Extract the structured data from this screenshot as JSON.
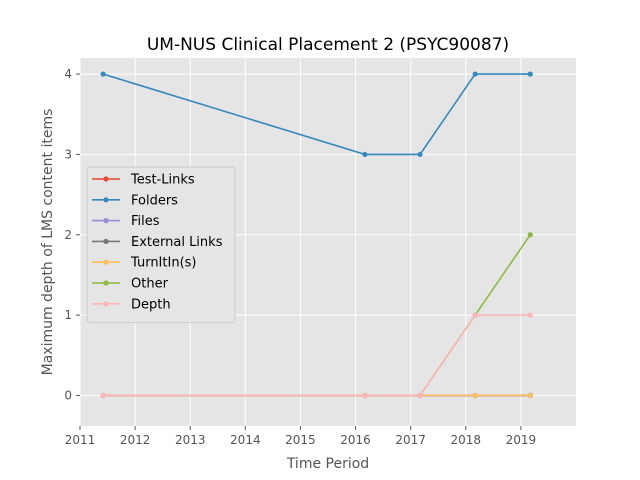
{
  "chart_data": {
    "type": "line",
    "title": "UM-NUS Clinical Placement 2 (PSYC90087)",
    "xlabel": "Time Period",
    "ylabel": "Maximum depth of LMS content items",
    "xlim": [
      2011,
      2020
    ],
    "ylim": [
      -0.38,
      4.2
    ],
    "x_ticks": [
      2011,
      2012,
      2013,
      2014,
      2015,
      2016,
      2017,
      2018,
      2019
    ],
    "y_ticks": [
      0,
      1,
      2,
      3,
      4
    ],
    "grid": true,
    "legend_position": "center-left",
    "x": [
      2011.42,
      2016.17,
      2017.17,
      2018.17,
      2019.17
    ],
    "series": [
      {
        "name": "Test-Links",
        "color": "#E24A33",
        "values": [
          0,
          0,
          0,
          0,
          0
        ]
      },
      {
        "name": "Folders",
        "color": "#348ABD",
        "values": [
          4,
          3,
          3,
          4,
          4
        ]
      },
      {
        "name": "Files",
        "color": "#988ED5",
        "values": [
          0,
          0,
          0,
          0,
          0
        ]
      },
      {
        "name": "External Links",
        "color": "#777777",
        "values": [
          0,
          0,
          0,
          0,
          0
        ]
      },
      {
        "name": "TurnItIn(s)",
        "color": "#FBC15E",
        "values": [
          0,
          0,
          0,
          0,
          0
        ]
      },
      {
        "name": "Other",
        "color": "#8EBA42",
        "values": [
          0,
          0,
          0,
          1,
          2
        ]
      },
      {
        "name": "Depth",
        "color": "#FFB5B8",
        "values": [
          0,
          0,
          0,
          1,
          1
        ]
      }
    ]
  }
}
